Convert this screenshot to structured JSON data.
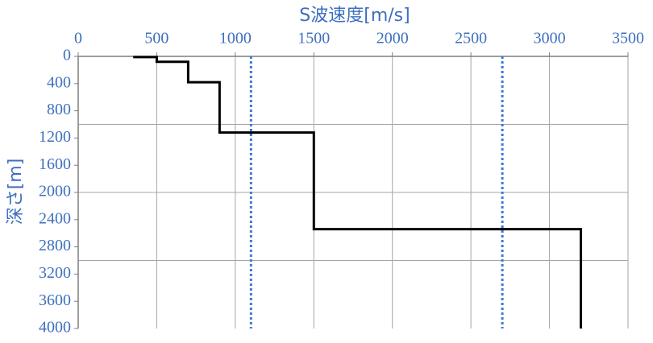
{
  "chart_data": {
    "type": "line",
    "title": "S波速度[m/s]",
    "y_label": "深さ[m]",
    "x": [
      350,
      500,
      500,
      700,
      700,
      900,
      900,
      1500,
      1500,
      3200,
      3200
    ],
    "values": [
      10,
      10,
      80,
      80,
      380,
      380,
      1120,
      1120,
      2540,
      2540,
      4000
    ],
    "color": "#000000",
    "xlim": [
      0,
      3500
    ],
    "xticks": [
      0,
      500,
      1000,
      1500,
      2000,
      2500,
      3000,
      3500
    ],
    "ylim": [
      0,
      4000
    ],
    "yticks": [
      0,
      400,
      800,
      1200,
      1600,
      2000,
      2400,
      2800,
      3200,
      3600,
      4000
    ],
    "y_inverted": true,
    "x_axis_top": true,
    "ygrid": [
      1000,
      2000,
      3000
    ],
    "grid": true,
    "vlines": [
      1100,
      2700
    ],
    "vline_color": "#3d7ad8"
  }
}
